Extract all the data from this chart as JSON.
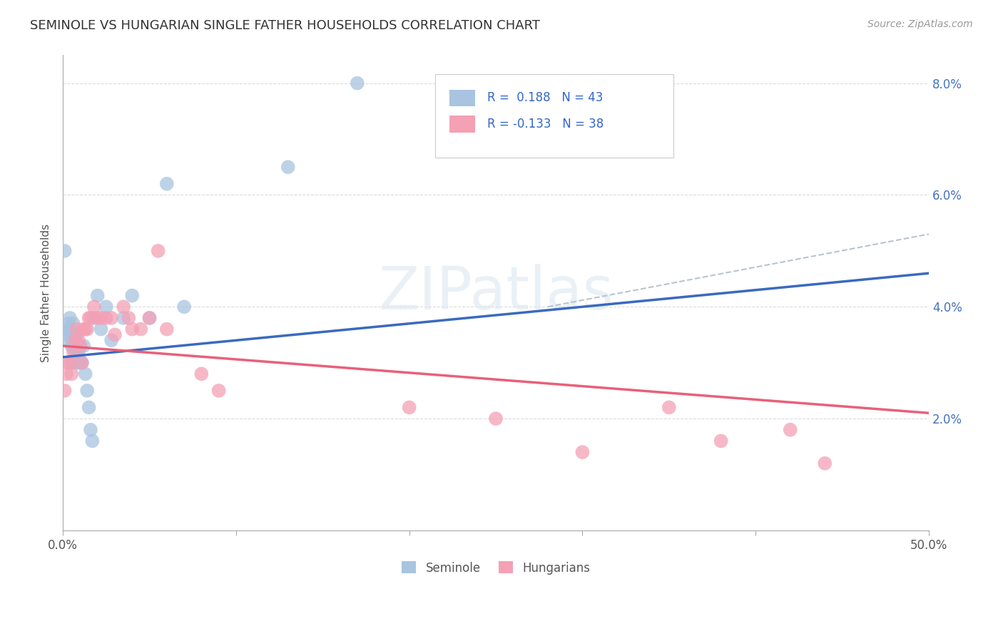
{
  "title": "SEMINOLE VS HUNGARIAN SINGLE FATHER HOUSEHOLDS CORRELATION CHART",
  "source": "Source: ZipAtlas.com",
  "ylabel": "Single Father Households",
  "xlim": [
    0,
    0.5
  ],
  "ylim": [
    0,
    0.085
  ],
  "watermark": "ZIPatlas",
  "seminole_color": "#a8c4e0",
  "hungarian_color": "#f4a0b5",
  "seminole_line_color": "#3a6abf",
  "hungarian_line_color": "#e8607a",
  "dash_line_color": "#b8c4d0",
  "background_color": "#ffffff",
  "seminole_x": [
    0.001,
    0.002,
    0.003,
    0.003,
    0.003,
    0.004,
    0.004,
    0.005,
    0.005,
    0.005,
    0.006,
    0.006,
    0.006,
    0.006,
    0.007,
    0.007,
    0.008,
    0.008,
    0.008,
    0.008,
    0.009,
    0.009,
    0.01,
    0.01,
    0.011,
    0.012,
    0.013,
    0.014,
    0.015,
    0.016,
    0.017,
    0.018,
    0.02,
    0.022,
    0.025,
    0.028,
    0.035,
    0.04,
    0.05,
    0.06,
    0.07,
    0.13,
    0.17
  ],
  "seminole_y": [
    0.05,
    0.035,
    0.037,
    0.036,
    0.034,
    0.038,
    0.036,
    0.035,
    0.033,
    0.03,
    0.037,
    0.035,
    0.033,
    0.03,
    0.035,
    0.032,
    0.035,
    0.033,
    0.032,
    0.03,
    0.032,
    0.03,
    0.033,
    0.03,
    0.03,
    0.033,
    0.028,
    0.025,
    0.022,
    0.018,
    0.016,
    0.038,
    0.042,
    0.036,
    0.04,
    0.034,
    0.038,
    0.042,
    0.038,
    0.062,
    0.04,
    0.065,
    0.08
  ],
  "hungarian_x": [
    0.001,
    0.002,
    0.003,
    0.004,
    0.005,
    0.006,
    0.007,
    0.008,
    0.009,
    0.01,
    0.011,
    0.012,
    0.013,
    0.014,
    0.015,
    0.016,
    0.018,
    0.02,
    0.022,
    0.025,
    0.028,
    0.03,
    0.035,
    0.038,
    0.04,
    0.045,
    0.05,
    0.055,
    0.06,
    0.08,
    0.09,
    0.2,
    0.25,
    0.3,
    0.35,
    0.38,
    0.42,
    0.44
  ],
  "hungarian_y": [
    0.025,
    0.028,
    0.03,
    0.03,
    0.028,
    0.032,
    0.034,
    0.036,
    0.034,
    0.033,
    0.03,
    0.036,
    0.036,
    0.036,
    0.038,
    0.038,
    0.04,
    0.038,
    0.038,
    0.038,
    0.038,
    0.035,
    0.04,
    0.038,
    0.036,
    0.036,
    0.038,
    0.05,
    0.036,
    0.028,
    0.025,
    0.022,
    0.02,
    0.014,
    0.022,
    0.016,
    0.018,
    0.012
  ],
  "seminole_trend": [
    0.031,
    0.046
  ],
  "hungarian_trend": [
    0.033,
    0.021
  ],
  "dash_trend_start_x": 0.28,
  "dash_trend": [
    0.04,
    0.053
  ]
}
